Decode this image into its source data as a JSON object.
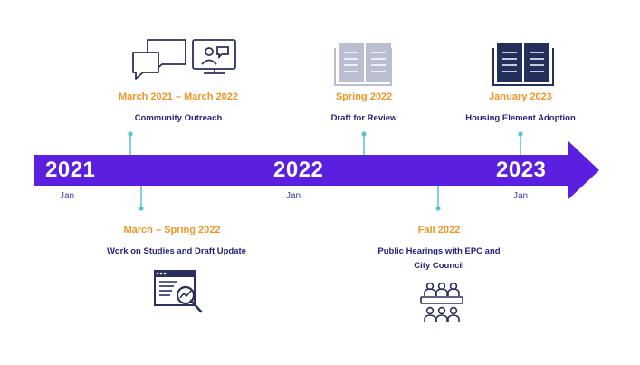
{
  "timeline": {
    "years": [
      {
        "label": "2021",
        "month": "Jan"
      },
      {
        "label": "2022",
        "month": "Jan"
      },
      {
        "label": "2023",
        "month": "Jan"
      }
    ],
    "events_above": [
      {
        "date": "March 2021 – March 2022",
        "desc": "Community Outreach",
        "icon": "chat-and-video-call-icon"
      },
      {
        "date": "Spring 2022",
        "desc": "Draft for Review",
        "icon": "open-book-light-icon"
      },
      {
        "date": "January 2023",
        "desc": "Housing Element Adoption",
        "icon": "open-book-dark-icon"
      }
    ],
    "events_below": [
      {
        "date": "March – Spring 2022",
        "desc": "Work on Studies and Draft Update",
        "icon": "data-analysis-magnifier-icon"
      },
      {
        "date": "Fall 2022",
        "desc": "Public Hearings with EPC and City Council",
        "icon": "meeting-table-icon"
      }
    ]
  },
  "colors": {
    "arrow": "#5b1fe0",
    "date": "#f0962a",
    "desc": "#231f7a",
    "connector": "#5fbfd6",
    "icon_outline": "#2a2f5e",
    "book_light": "#b9bfd0",
    "book_dark": "#23305c"
  }
}
